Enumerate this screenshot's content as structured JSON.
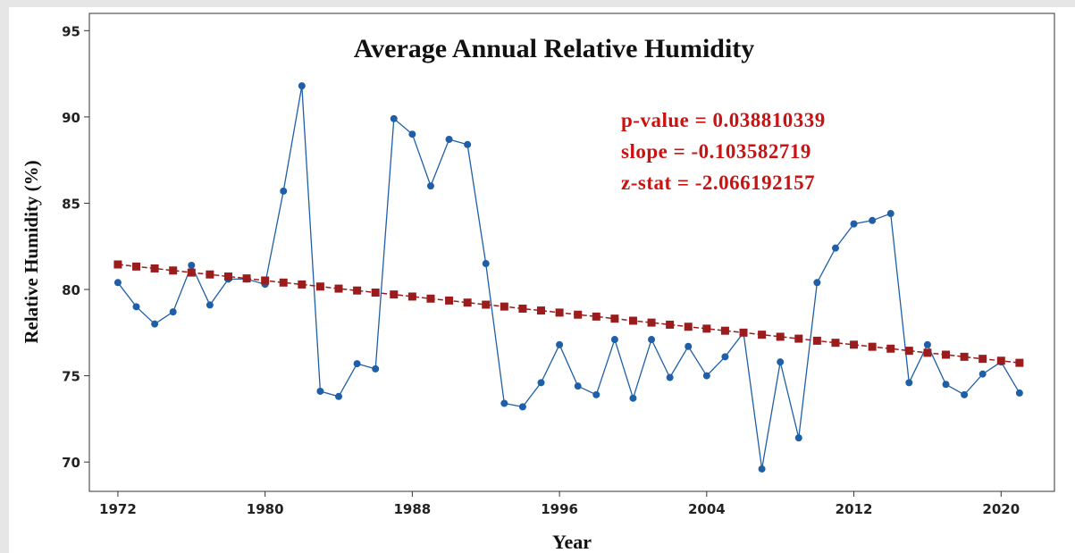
{
  "chart_data": {
    "type": "line",
    "title": "Average Annual Relative Humidity",
    "xlabel": "Year",
    "ylabel": "Relative Humidity (%)",
    "annotations": [
      "p-value = 0.038810339",
      "slope =  -0.103582719",
      "z-stat = -2.066192157"
    ],
    "x": [
      1972,
      1973,
      1974,
      1975,
      1976,
      1977,
      1978,
      1979,
      1980,
      1981,
      1982,
      1983,
      1984,
      1985,
      1986,
      1987,
      1988,
      1989,
      1990,
      1991,
      1992,
      1993,
      1994,
      1995,
      1996,
      1997,
      1998,
      1999,
      2000,
      2001,
      2002,
      2003,
      2004,
      2005,
      2006,
      2007,
      2008,
      2009,
      2010,
      2011,
      2012,
      2013,
      2014,
      2015,
      2016,
      2017,
      2018,
      2019,
      2020,
      2021
    ],
    "series": [
      {
        "name": "Relative Humidity",
        "color": "#1f5fa8",
        "marker": "circle",
        "values": [
          80.4,
          79.0,
          78.0,
          78.7,
          81.4,
          79.1,
          80.6,
          80.6,
          80.3,
          85.7,
          91.8,
          74.1,
          73.8,
          75.7,
          75.4,
          89.9,
          89.0,
          86.0,
          88.7,
          88.4,
          81.5,
          73.4,
          73.2,
          74.6,
          76.8,
          74.4,
          73.9,
          77.1,
          73.7,
          77.1,
          74.9,
          76.7,
          75.0,
          76.1,
          77.5,
          69.6,
          75.8,
          71.4,
          80.4,
          82.4,
          83.8,
          84.0,
          84.4,
          74.6,
          76.8,
          74.5,
          73.9,
          75.1,
          75.8,
          74.0
        ]
      },
      {
        "name": "Trend",
        "color": "#9b1c1c",
        "marker": "square",
        "values": [
          81.45,
          81.33,
          81.22,
          81.1,
          80.98,
          80.87,
          80.75,
          80.64,
          80.52,
          80.4,
          80.29,
          80.17,
          80.05,
          79.94,
          79.82,
          79.71,
          79.59,
          79.47,
          79.36,
          79.24,
          79.12,
          79.01,
          78.89,
          78.78,
          78.66,
          78.54,
          78.43,
          78.31,
          78.19,
          78.08,
          77.96,
          77.84,
          77.73,
          77.61,
          77.5,
          77.38,
          77.26,
          77.15,
          77.03,
          76.91,
          76.8,
          76.68,
          76.57,
          76.45,
          76.33,
          76.22,
          76.1,
          75.98,
          75.87,
          75.75
        ]
      }
    ],
    "xlim": [
      1970.45,
      2022.9
    ],
    "xticks": [
      1972,
      1980,
      1988,
      1996,
      2004,
      2012,
      2020
    ],
    "ylim": [
      68.3,
      96.0
    ],
    "yticks": [
      70,
      75,
      80,
      85,
      90,
      95
    ],
    "annotation_color": "#cc1111"
  }
}
